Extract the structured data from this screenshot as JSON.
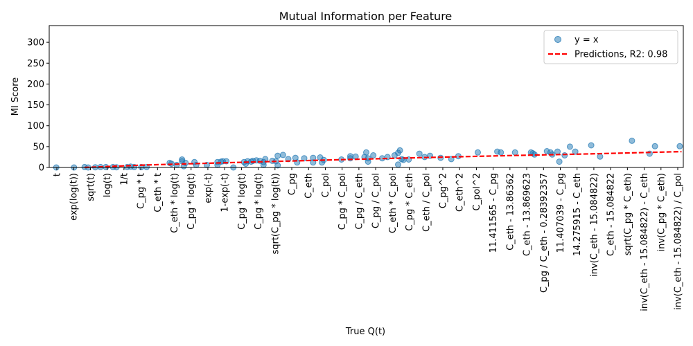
{
  "chart_data": {
    "type": "scatter",
    "title": "Mutual Information per Feature",
    "xlabel": "True Q(t)",
    "ylabel": "MI Score",
    "ylim": [
      0,
      340
    ],
    "yticks": [
      0,
      50,
      100,
      150,
      200,
      250,
      300
    ],
    "grid": false,
    "legend_position": "upper right",
    "categories": [
      "t",
      "exp(log(t))",
      "sqrt(t)",
      "log(t)",
      "1/t",
      "C_pg * t",
      "C_eth * t",
      "C_eth * log(t)",
      "C_pg * log(t)",
      "exp(-t)",
      "1-exp(-t)",
      "C_pg * log(t)",
      "C_pg * log(t)",
      "sqrt(C_pg * log(t))",
      "C_pg",
      "C_eth",
      "C_pol",
      "C_pg * C_pol",
      "C_pg / C_eth",
      "C_pg / C_pol",
      "C_eth * C_pol",
      "C_pg * C_eth",
      "C_eth / C_pol",
      "C_pg^2",
      "C_eth^2",
      "C_pol^2",
      "11.411565 - C_pg",
      "C_eth - 13.86362",
      "C_eth - 13.869623",
      "C_pg / C_eth - 0.28392357",
      "11.407039 - C_pg",
      "14.275915 - C_eth",
      "inv(C_eth - 15.084822)",
      "C_eth - 15.084822",
      "sqrt(C_pg * C_eth)",
      "inv(C_eth - 15.084822) - C_eth",
      "inv(C_pg * C_eth)",
      "inv(C_eth - 15.084822) / C_pol"
    ],
    "series": [
      {
        "name": "y = x",
        "kind": "scatter",
        "color": "#1f77b4",
        "points": [
          [
            -0.1,
            0
          ],
          [
            0.9,
            0
          ],
          [
            1.5,
            1
          ],
          [
            1.7,
            0
          ],
          [
            2.1,
            0.5
          ],
          [
            2.4,
            1
          ],
          [
            2.7,
            1
          ],
          [
            3.1,
            1
          ],
          [
            3.3,
            0.5
          ],
          [
            3.9,
            1
          ],
          [
            4.1,
            2
          ],
          [
            4.3,
            1
          ],
          [
            4.7,
            1
          ],
          [
            5.0,
            1
          ],
          [
            6.3,
            11
          ],
          [
            6.4,
            9
          ],
          [
            6.7,
            6
          ],
          [
            7.0,
            19
          ],
          [
            7.0,
            15
          ],
          [
            7.2,
            11
          ],
          [
            7.1,
            3
          ],
          [
            7.7,
            13
          ],
          [
            7.8,
            6
          ],
          [
            8.4,
            6
          ],
          [
            9.0,
            13
          ],
          [
            9.2,
            14
          ],
          [
            9.0,
            6
          ],
          [
            9.3,
            15
          ],
          [
            9.5,
            15
          ],
          [
            9.9,
            0
          ],
          [
            10.5,
            13
          ],
          [
            10.6,
            9
          ],
          [
            10.7,
            15
          ],
          [
            10.9,
            14
          ],
          [
            11.0,
            16
          ],
          [
            11.2,
            17
          ],
          [
            11.4,
            16
          ],
          [
            11.6,
            13
          ],
          [
            11.7,
            20
          ],
          [
            11.6,
            6
          ],
          [
            12.1,
            16
          ],
          [
            12.3,
            15
          ],
          [
            12.4,
            5
          ],
          [
            12.4,
            28
          ],
          [
            12.7,
            30
          ],
          [
            13.0,
            20
          ],
          [
            13.4,
            23
          ],
          [
            13.5,
            12
          ],
          [
            13.9,
            22
          ],
          [
            14.4,
            12
          ],
          [
            14.4,
            23
          ],
          [
            14.8,
            24
          ],
          [
            14.9,
            12
          ],
          [
            15.0,
            18
          ],
          [
            16.0,
            19
          ],
          [
            16.5,
            27
          ],
          [
            16.5,
            22
          ],
          [
            16.8,
            26
          ],
          [
            17.3,
            25
          ],
          [
            17.4,
            36
          ],
          [
            17.5,
            14
          ],
          [
            17.5,
            22
          ],
          [
            17.8,
            29
          ],
          [
            18.3,
            22
          ],
          [
            18.6,
            25
          ],
          [
            19.0,
            29
          ],
          [
            19.2,
            35
          ],
          [
            19.2,
            7
          ],
          [
            19.3,
            41
          ],
          [
            19.4,
            20
          ],
          [
            19.5,
            18
          ],
          [
            19.8,
            19
          ],
          [
            20.4,
            33
          ],
          [
            20.7,
            25
          ],
          [
            21.0,
            28
          ],
          [
            21.6,
            23
          ],
          [
            22.2,
            20
          ],
          [
            22.6,
            27
          ],
          [
            23.7,
            36
          ],
          [
            24.8,
            38
          ],
          [
            25.0,
            36
          ],
          [
            25.8,
            36
          ],
          [
            26.7,
            36
          ],
          [
            26.8,
            34
          ],
          [
            26.9,
            31
          ],
          [
            27.6,
            39
          ],
          [
            27.8,
            36
          ],
          [
            27.9,
            31
          ],
          [
            28.2,
            38
          ],
          [
            28.3,
            14
          ],
          [
            28.6,
            29
          ],
          [
            28.9,
            50
          ],
          [
            29.2,
            38
          ],
          [
            30.1,
            53
          ],
          [
            30.6,
            26
          ],
          [
            32.4,
            64
          ],
          [
            33.4,
            33
          ],
          [
            33.7,
            51
          ],
          [
            35.1,
            51
          ]
        ]
      },
      {
        "name": "Predictions, R2: 0.98",
        "kind": "line",
        "color": "#ff0000",
        "x": [
          1.5,
          5,
          10,
          15,
          20,
          25,
          30,
          35.2
        ],
        "y": [
          0,
          6,
          12,
          17.5,
          23,
          28,
          32.5,
          38
        ]
      }
    ]
  }
}
